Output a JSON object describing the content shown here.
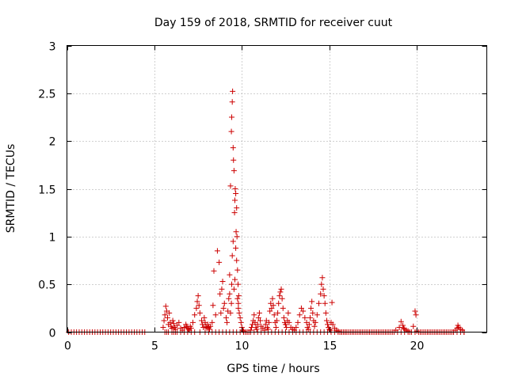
{
  "chart_data": {
    "type": "scatter",
    "title": "Day 159 of 2018, SRMTID for receiver cuut",
    "xlabel": "GPS time / hours",
    "ylabel": "SRMTID / TECUs",
    "xlim": [
      0,
      24
    ],
    "ylim": [
      0,
      3
    ],
    "xticks": [
      0,
      5,
      10,
      15,
      20
    ],
    "xtick_labels": [
      "0",
      "5",
      "10",
      "15",
      "20"
    ],
    "yticks": [
      0,
      0.5,
      1,
      1.5,
      2,
      2.5,
      3
    ],
    "ytick_labels": [
      "0",
      "0.5",
      "1",
      "1.5",
      "2",
      "2.5",
      "3"
    ],
    "grid": true,
    "marker": "+",
    "colors": {
      "series": "#cc0000",
      "grid": "#a0a0a0",
      "axis": "#000000"
    },
    "series": [
      {
        "name": "SRMTID",
        "x": [
          0.1,
          0.25,
          0.4,
          0.55,
          0.7,
          0.85,
          1.0,
          1.15,
          1.3,
          1.45,
          1.6,
          1.75,
          1.9,
          2.05,
          2.2,
          2.35,
          2.5,
          2.65,
          2.8,
          2.95,
          3.1,
          3.25,
          3.4,
          3.55,
          3.7,
          3.85,
          4.0,
          4.15,
          4.3,
          4.45,
          5.5,
          5.55,
          5.6,
          5.65,
          5.7,
          5.75,
          5.8,
          5.85,
          5.9,
          5.95,
          6.0,
          6.05,
          6.1,
          6.15,
          6.2,
          6.3,
          6.4,
          6.5,
          6.6,
          6.7,
          6.8,
          6.85,
          6.9,
          6.95,
          7.0,
          7.05,
          7.1,
          7.2,
          7.3,
          7.4,
          7.45,
          7.5,
          7.55,
          7.6,
          7.7,
          7.75,
          7.8,
          7.85,
          7.9,
          7.95,
          8.0,
          8.05,
          8.1,
          8.15,
          8.2,
          8.3,
          8.35,
          8.4,
          8.5,
          8.6,
          8.7,
          8.75,
          8.8,
          8.85,
          8.9,
          8.95,
          9.0,
          9.1,
          9.15,
          9.2,
          9.25,
          9.3,
          9.3,
          9.35,
          9.35,
          9.4,
          9.4,
          9.42,
          9.42,
          9.45,
          9.45,
          9.47,
          9.5,
          9.5,
          9.52,
          9.55,
          9.55,
          9.58,
          9.6,
          9.6,
          9.62,
          9.65,
          9.65,
          9.67,
          9.7,
          9.7,
          9.72,
          9.75,
          9.75,
          9.78,
          9.8,
          9.8,
          9.82,
          9.85,
          9.9,
          9.95,
          10.0,
          10.05,
          10.1,
          10.2,
          10.3,
          10.4,
          10.5,
          10.55,
          10.6,
          10.65,
          10.7,
          10.75,
          10.8,
          10.85,
          10.9,
          10.95,
          11.0,
          11.05,
          11.1,
          11.2,
          11.3,
          11.35,
          11.4,
          11.45,
          11.5,
          11.55,
          11.6,
          11.65,
          11.7,
          11.75,
          11.8,
          11.85,
          11.9,
          11.95,
          12.0,
          12.05,
          12.1,
          12.15,
          12.2,
          12.25,
          12.3,
          12.35,
          12.4,
          12.45,
          12.5,
          12.55,
          12.6,
          12.65,
          12.7,
          12.8,
          12.9,
          13.0,
          13.1,
          13.2,
          13.3,
          13.4,
          13.5,
          13.6,
          13.7,
          13.75,
          13.8,
          13.85,
          13.9,
          13.95,
          14.0,
          14.05,
          14.1,
          14.15,
          14.2,
          14.3,
          14.4,
          14.5,
          14.55,
          14.6,
          14.65,
          14.7,
          14.75,
          14.8,
          14.85,
          14.9,
          14.95,
          15.0,
          15.05,
          15.1,
          15.15,
          15.2,
          15.3,
          15.4,
          15.5,
          15.6,
          15.7,
          15.8,
          15.9,
          16.0,
          16.2,
          16.4,
          16.6,
          16.8,
          17.0,
          17.2,
          17.4,
          17.6,
          17.8,
          18.0,
          18.2,
          18.4,
          18.6,
          18.8,
          19.0,
          19.1,
          19.2,
          19.25,
          19.3,
          19.4,
          19.5,
          19.6,
          19.8,
          19.9,
          19.95,
          20.0,
          20.2,
          20.4,
          20.6,
          20.8,
          21.0,
          21.2,
          21.4,
          21.6,
          21.8,
          22.0,
          22.1,
          22.2,
          22.3,
          22.35,
          22.4,
          22.5,
          22.6,
          22.7,
          5.6,
          5.7,
          5.8,
          6.0,
          6.1,
          6.2,
          6.3,
          6.5,
          6.7,
          6.9,
          7.1,
          7.3,
          7.6,
          7.9,
          8.1,
          8.3,
          8.5,
          8.7,
          8.9,
          9.1,
          9.3,
          9.5,
          9.7,
          9.9,
          10.1,
          10.3,
          10.5,
          10.7,
          10.9,
          11.1,
          11.3,
          11.5,
          11.7,
          11.9,
          12.1,
          12.3,
          12.5,
          12.7,
          12.9,
          13.1,
          13.3,
          13.5,
          13.7,
          13.9,
          14.1,
          14.3,
          14.5,
          14.7,
          14.9,
          15.1,
          15.3,
          15.5,
          15.7,
          15.9,
          16.1,
          16.3,
          16.5,
          16.7,
          16.9,
          17.1,
          17.3,
          17.5,
          17.7,
          17.9,
          18.1,
          18.3,
          18.5,
          18.7,
          18.9,
          19.1,
          19.3,
          19.5,
          19.7,
          19.9,
          20.1,
          20.3,
          20.5,
          20.7,
          20.9,
          21.1,
          21.3,
          21.5,
          21.7,
          21.9,
          22.1,
          22.3,
          22.5,
          22.7
        ],
        "y": [
          0.0,
          0.0,
          0.0,
          0.0,
          0.0,
          0.0,
          0.0,
          0.0,
          0.0,
          0.0,
          0.0,
          0.0,
          0.0,
          0.0,
          0.0,
          0.0,
          0.0,
          0.0,
          0.0,
          0.0,
          0.0,
          0.0,
          0.0,
          0.0,
          0.0,
          0.0,
          0.0,
          0.0,
          0.0,
          0.0,
          0.05,
          0.12,
          0.18,
          0.27,
          0.22,
          0.15,
          0.08,
          0.2,
          0.1,
          0.06,
          0.04,
          0.12,
          0.09,
          0.05,
          0.03,
          0.07,
          0.1,
          0.04,
          0.02,
          0.05,
          0.08,
          0.06,
          0.04,
          0.03,
          0.02,
          0.06,
          0.04,
          0.1,
          0.18,
          0.25,
          0.32,
          0.38,
          0.28,
          0.2,
          0.12,
          0.08,
          0.05,
          0.15,
          0.1,
          0.06,
          0.04,
          0.08,
          0.05,
          0.03,
          0.06,
          0.1,
          0.28,
          0.64,
          0.18,
          0.85,
          0.73,
          0.4,
          0.2,
          0.45,
          0.53,
          0.25,
          0.3,
          0.15,
          0.1,
          0.22,
          0.35,
          0.4,
          0.6,
          0.2,
          1.53,
          0.3,
          2.1,
          0.5,
          2.25,
          0.8,
          2.41,
          2.52,
          1.93,
          0.95,
          1.8,
          1.69,
          0.45,
          1.25,
          0.55,
          1.38,
          1.5,
          0.88,
          1.45,
          1.05,
          1.3,
          0.75,
          1.0,
          0.65,
          0.35,
          0.5,
          0.3,
          0.25,
          0.38,
          0.2,
          0.15,
          0.1,
          0.05,
          0.02,
          0.01,
          0.0,
          0.0,
          0.0,
          0.02,
          0.05,
          0.08,
          0.12,
          0.18,
          0.1,
          0.05,
          0.03,
          0.08,
          0.15,
          0.2,
          0.12,
          0.06,
          0.04,
          0.02,
          0.08,
          0.12,
          0.05,
          0.03,
          0.1,
          0.22,
          0.3,
          0.25,
          0.35,
          0.28,
          0.18,
          0.1,
          0.05,
          0.12,
          0.2,
          0.3,
          0.38,
          0.42,
          0.45,
          0.35,
          0.25,
          0.15,
          0.1,
          0.08,
          0.05,
          0.12,
          0.2,
          0.1,
          0.05,
          0.03,
          0.02,
          0.05,
          0.1,
          0.18,
          0.25,
          0.22,
          0.15,
          0.1,
          0.05,
          0.03,
          0.08,
          0.15,
          0.25,
          0.32,
          0.2,
          0.12,
          0.06,
          0.1,
          0.18,
          0.3,
          0.4,
          0.5,
          0.57,
          0.45,
          0.38,
          0.3,
          0.2,
          0.12,
          0.08,
          0.05,
          0.03,
          0.02,
          0.1,
          0.31,
          0.08,
          0.04,
          0.02,
          0.01,
          0.0,
          0.0,
          0.0,
          0.0,
          0.0,
          0.0,
          0.0,
          0.0,
          0.0,
          0.0,
          0.0,
          0.0,
          0.0,
          0.0,
          0.0,
          0.0,
          0.0,
          0.0,
          0.02,
          0.05,
          0.11,
          0.07,
          0.04,
          0.03,
          0.02,
          0.01,
          0.0,
          0.06,
          0.22,
          0.18,
          0.01,
          0.0,
          0.0,
          0.0,
          0.0,
          0.0,
          0.0,
          0.0,
          0.0,
          0.0,
          0.0,
          0.0,
          0.02,
          0.04,
          0.07,
          0.05,
          0.03,
          0.02,
          0.0,
          0.0,
          0.0,
          0.0,
          0.0,
          0.0,
          0.0,
          0.0,
          0.0,
          0.0,
          0.0,
          0.0,
          0.0,
          0.0,
          0.0,
          0.0,
          0.0,
          0.0,
          0.0,
          0.0,
          0.0,
          0.0,
          0.0,
          0.0,
          0.0,
          0.0,
          0.0,
          0.0,
          0.0,
          0.0,
          0.0,
          0.0,
          0.0,
          0.0,
          0.0,
          0.0,
          0.0,
          0.0,
          0.0,
          0.0,
          0.0,
          0.0,
          0.0,
          0.0,
          0.0,
          0.0,
          0.0,
          0.0,
          0.0,
          0.0,
          0.0,
          0.0,
          0.0,
          0.0,
          0.0,
          0.0,
          0.0,
          0.0,
          0.0,
          0.0,
          0.0,
          0.0,
          0.0,
          0.0,
          0.0,
          0.0,
          0.0,
          0.0,
          0.0,
          0.0,
          0.0,
          0.0,
          0.0,
          0.0,
          0.0,
          0.0,
          0.0,
          0.0,
          0.0,
          0.0,
          0.0,
          0.0,
          0.0,
          0.0,
          0.0,
          0.0,
          0.0,
          0.0,
          0.0
        ]
      }
    ]
  }
}
